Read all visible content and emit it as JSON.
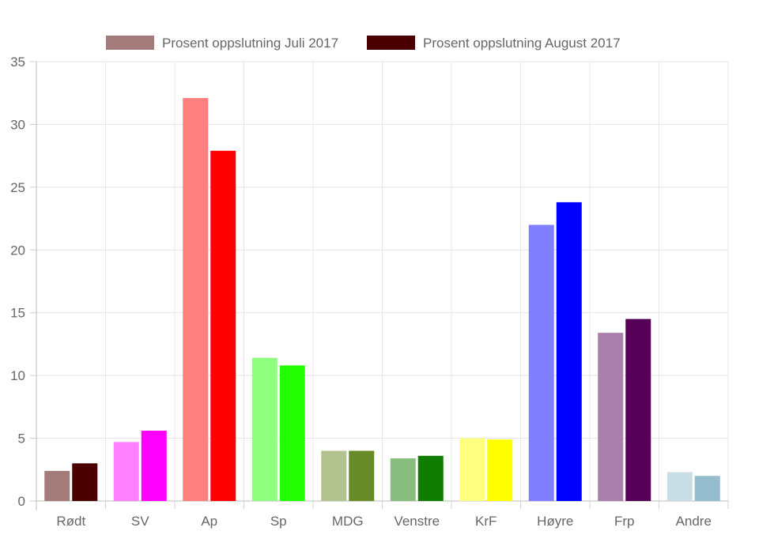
{
  "chart_data": {
    "type": "bar",
    "title": "",
    "xlabel": "",
    "ylabel": "",
    "ylim": [
      0,
      35
    ],
    "yticks": [
      "0",
      "5",
      "10",
      "15",
      "20",
      "25",
      "30",
      "35"
    ],
    "grid": true,
    "legend_position": "top-center",
    "categories": [
      "Rødt",
      "SV",
      "Ap",
      "Sp",
      "MDG",
      "Venstre",
      "KrF",
      "Høyre",
      "Frp",
      "Andre"
    ],
    "series": [
      {
        "name": "Prosent oppslutning Juli 2017",
        "legend_color": "#a47b7b",
        "values": [
          2.4,
          4.7,
          32.1,
          11.4,
          4.0,
          3.4,
          5.0,
          22.0,
          13.4,
          2.3
        ],
        "colors": [
          "#a47b7b",
          "#ff80ff",
          "#ff7f7f",
          "#8fff7f",
          "#b3c38f",
          "#89bd80",
          "#ffff7f",
          "#7f7fff",
          "#ab7fab",
          "#c9dde7"
        ]
      },
      {
        "name": "Prosent oppslutning August 2017",
        "legend_color": "#4a0000",
        "values": [
          3.0,
          5.6,
          27.9,
          10.8,
          4.0,
          3.6,
          4.9,
          23.8,
          14.5,
          2.0
        ],
        "colors": [
          "#4a0000",
          "#ff00ff",
          "#ff0000",
          "#22ff00",
          "#678c27",
          "#107c00",
          "#ffff00",
          "#0000ff",
          "#570057",
          "#96bcd0"
        ]
      }
    ]
  }
}
